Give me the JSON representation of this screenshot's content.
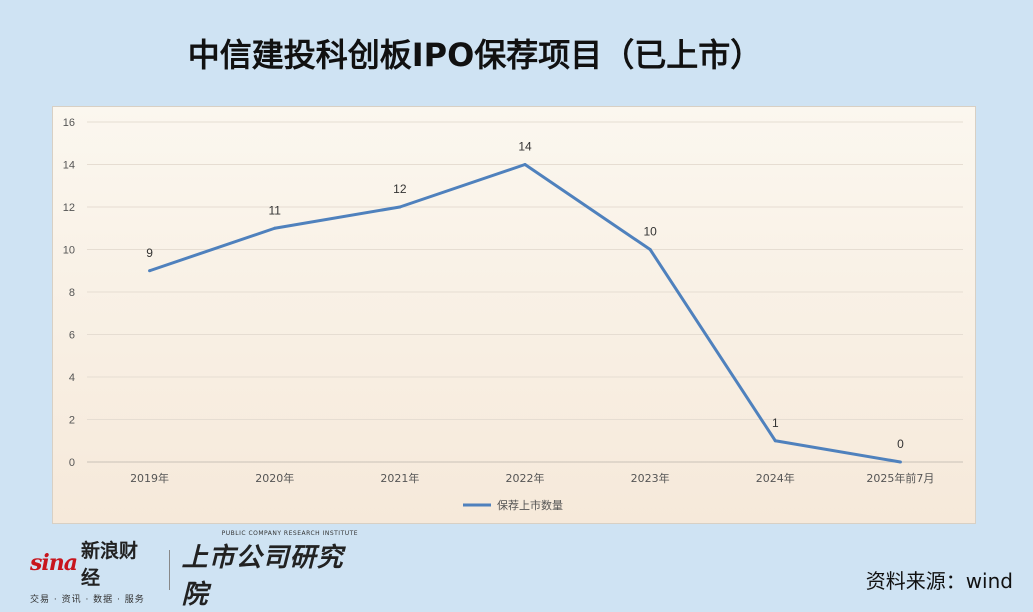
{
  "title": "中信建投科创板IPO保荐项目（已上市）",
  "source": "资料来源：wind",
  "logos": {
    "sina_mark": "sina",
    "sina_name": "新浪财经",
    "sina_sub": "交易 · 资讯 · 数据 · 服务",
    "research_en": "PUBLIC COMPANY RESEARCH INSTITUTE",
    "research_cn": "上市公司研究院"
  },
  "chart_data": {
    "type": "line",
    "categories": [
      "2019年",
      "2020年",
      "2021年",
      "2022年",
      "2023年",
      "2024年",
      "2025年前7月"
    ],
    "series": [
      {
        "name": "保荐上市数量",
        "values": [
          9,
          11,
          12,
          14,
          10,
          1,
          0
        ],
        "color": "#4f81bd"
      }
    ],
    "ylim": [
      0,
      16
    ],
    "yticks": [
      0,
      2,
      4,
      6,
      8,
      10,
      12,
      14,
      16
    ],
    "grid": true,
    "legend": "bottom",
    "data_labels": true
  }
}
